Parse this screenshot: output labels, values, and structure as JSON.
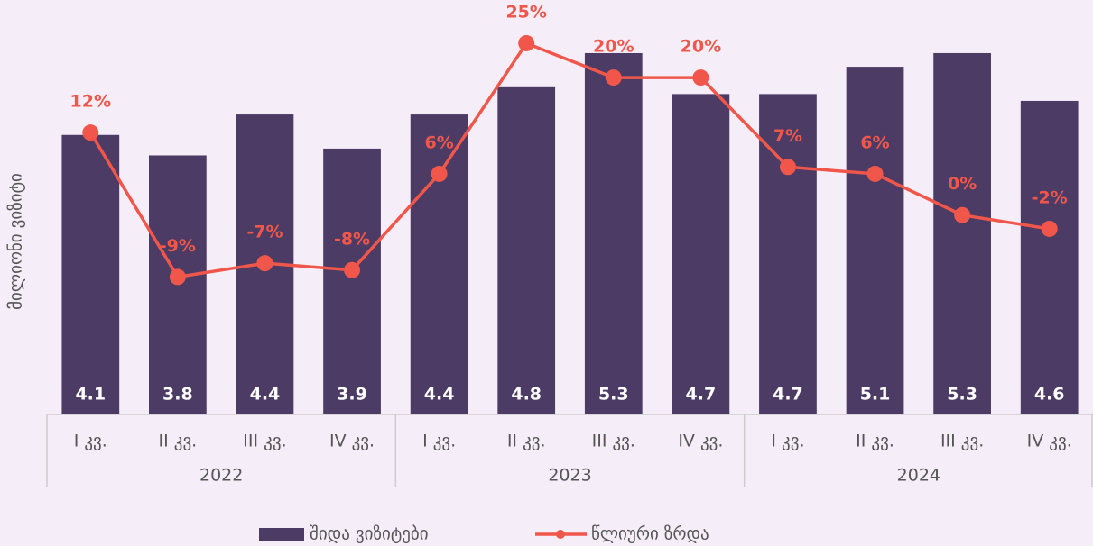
{
  "chart_data": {
    "type": "bar",
    "categories": [
      "I კვ.",
      "II კვ.",
      "III კვ.",
      "IV კვ.",
      "I კვ.",
      "II კვ.",
      "III კვ.",
      "IV კვ.",
      "I კვ.",
      "II კვ.",
      "III კვ.",
      "IV კვ."
    ],
    "groups": [
      "2022",
      "2023",
      "2024"
    ],
    "ylabel": "მილიონი ვიზიტი",
    "ylim": [
      0,
      6
    ],
    "y2lim": [
      -29,
      30.5
    ],
    "series": [
      {
        "name": "შიდა ვიზიტები",
        "type": "bar",
        "color": "#4b3b65",
        "values": [
          4.1,
          3.8,
          4.4,
          3.9,
          4.4,
          4.8,
          5.3,
          4.7,
          4.7,
          5.1,
          5.3,
          4.6
        ]
      },
      {
        "name": "წლიური ზრდა",
        "type": "line",
        "axis": "y2",
        "color": "#f0574a",
        "values": [
          12,
          -9,
          -7,
          -8,
          6,
          25,
          20,
          20,
          7,
          6,
          0,
          -2
        ],
        "value_labels": [
          "12%",
          "-9%",
          "-7%",
          "-8%",
          "6%",
          "25%",
          "20%",
          "20%",
          "7%",
          "6%",
          "0%",
          "-2%"
        ]
      }
    ],
    "legend": "bottom"
  }
}
